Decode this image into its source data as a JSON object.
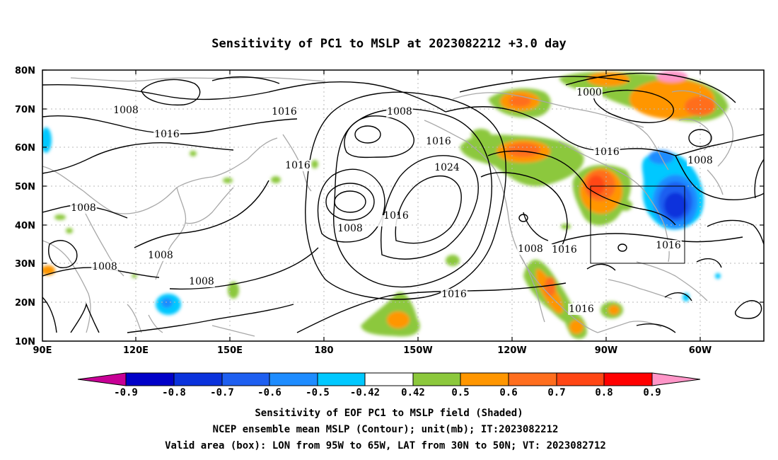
{
  "title": "Sensitivity of PC1 to MSLP at 2023082212 +3.0 day",
  "lat_labels": [
    "80N",
    "70N",
    "60N",
    "50N",
    "40N",
    "30N",
    "20N",
    "10N"
  ],
  "lon_labels": [
    "90E",
    "120E",
    "150E",
    "180",
    "150W",
    "120W",
    "90W",
    "60W"
  ],
  "contour_labels": [
    {
      "text": "1008"
    },
    {
      "text": "1016"
    },
    {
      "text": "1016"
    },
    {
      "text": "1008"
    },
    {
      "text": "1016"
    },
    {
      "text": "1016"
    },
    {
      "text": "1008"
    },
    {
      "text": "1008"
    },
    {
      "text": "1008"
    },
    {
      "text": "1024"
    },
    {
      "text": "1008"
    },
    {
      "text": "1008"
    },
    {
      "text": "1016"
    },
    {
      "text": "1000"
    },
    {
      "text": "1016"
    },
    {
      "text": "1008"
    },
    {
      "text": "1016"
    },
    {
      "text": "1008"
    },
    {
      "text": "1016"
    },
    {
      "text": "1016"
    },
    {
      "text": "1016"
    }
  ],
  "colorbar": {
    "labels": [
      "-0.9",
      "-0.8",
      "-0.7",
      "-0.6",
      "-0.5",
      "-0.42",
      "0.42",
      "0.5",
      "0.6",
      "0.7",
      "0.8",
      "0.9"
    ],
    "colors": [
      "#0000c8",
      "#0a32dc",
      "#1e5ff0",
      "#1e8cff",
      "#00c8ff",
      "#ffffff",
      "#8cc83c",
      "#ff9600",
      "#ff6e1e",
      "#ff4614",
      "#ff0000"
    ],
    "low_end_color": "#c80096",
    "high_end_color": "#ff96c8"
  },
  "footer": {
    "line1": "Sensitivity of EOF PC1 to MSLP field (Shaded)",
    "line2": "NCEP ensemble mean MSLP (Contour); unit(mb); IT:2023082212",
    "line3": "Valid area (box): LON from 95W to 65W, LAT from 30N to 50N; VT: 2023082712"
  },
  "valid_box": {
    "lon_from": "95W",
    "lon_to": "65W",
    "lat_from": "30N",
    "lat_to": "50N"
  }
}
